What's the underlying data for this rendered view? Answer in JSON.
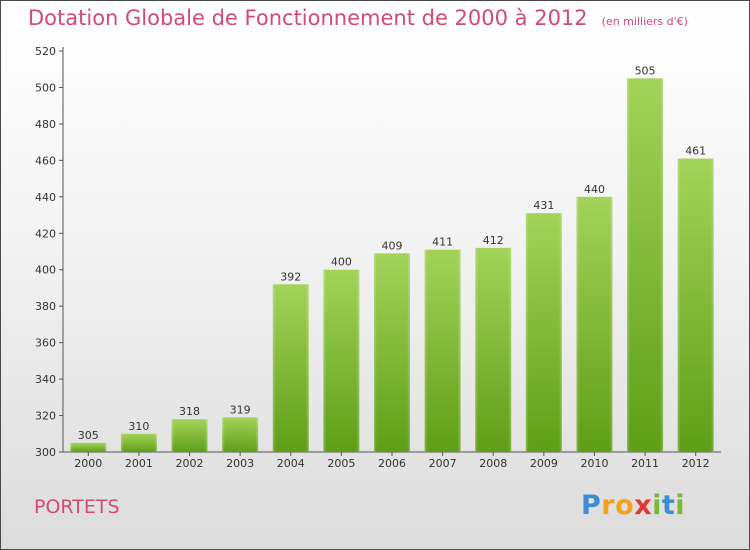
{
  "title": "Dotation Globale de Fonctionnement de 2000 à 2012",
  "subtitle": "(en milliers d'€)",
  "town": "PORTETS",
  "logo": "Proxiti",
  "colors": {
    "title": "#d14b73",
    "bar_light": "#9ccf4e",
    "bar_dark": "#5f9e17",
    "axis": "#555555"
  },
  "chart_data": {
    "type": "bar",
    "categories": [
      "2000",
      "2001",
      "2002",
      "2003",
      "2004",
      "2005",
      "2006",
      "2007",
      "2008",
      "2009",
      "2010",
      "2011",
      "2012"
    ],
    "values": [
      305,
      310,
      318,
      319,
      392,
      400,
      409,
      411,
      412,
      431,
      440,
      505,
      461
    ],
    "title": "Dotation Globale de Fonctionnement de 2000 à 2012",
    "subtitle": "(en milliers d'€)",
    "xlabel": "",
    "ylabel": "",
    "ylim": [
      300,
      520
    ],
    "yticks": [
      300,
      320,
      340,
      360,
      380,
      400,
      420,
      440,
      460,
      480,
      500,
      520
    ],
    "grid": false,
    "legend": "none"
  }
}
